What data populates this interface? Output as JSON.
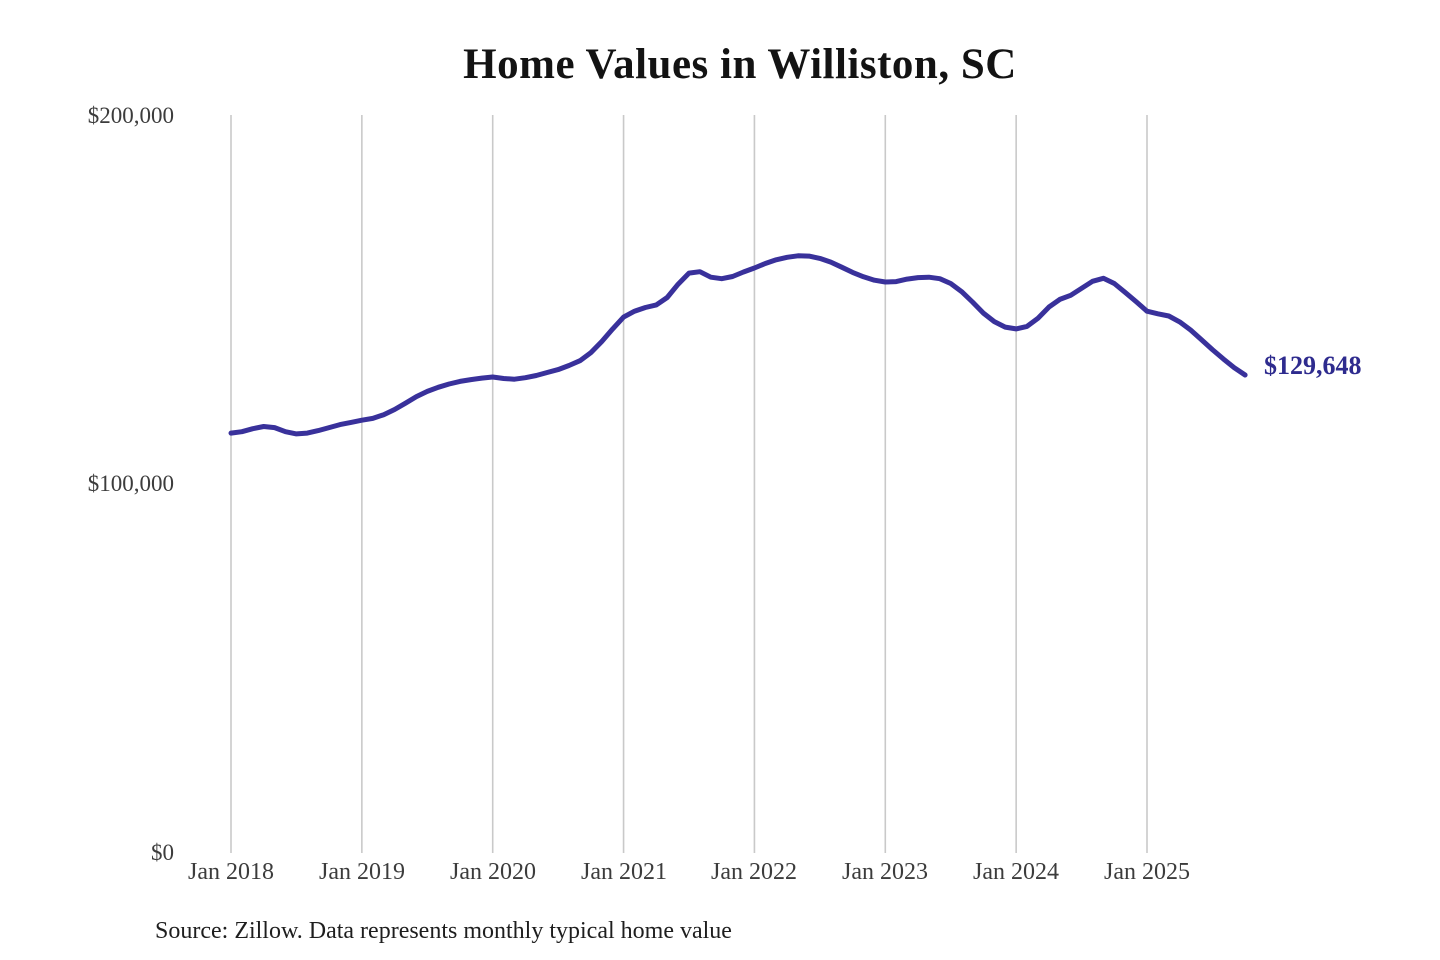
{
  "page": {
    "background": "#ffffff",
    "source_note": "Source: Zillow. Data represents monthly typical home value"
  },
  "chart_data": {
    "type": "line",
    "title": "Home Values in Williston, SC",
    "series_name": "Monthly typical home value",
    "unit": "USD",
    "x_frequency": "monthly",
    "x_start": "2018-01",
    "x_end": "2025-10",
    "xtick_labels": [
      "Jan 2018",
      "Jan 2019",
      "Jan 2020",
      "Jan 2021",
      "Jan 2022",
      "Jan 2023",
      "Jan 2024",
      "Jan 2025"
    ],
    "ytick_labels": [
      "$200,000",
      "$100,000",
      "$0"
    ],
    "ylim": [
      0,
      200000
    ],
    "grid": "vertical-only",
    "grid_color": "#c9c9c9",
    "line_color": "#39319b",
    "end_label": "$129,648",
    "end_value": 129648,
    "values": [
      113900,
      114300,
      115100,
      115700,
      115400,
      114300,
      113700,
      113900,
      114600,
      115400,
      116200,
      116800,
      117400,
      117900,
      118900,
      120300,
      122000,
      123800,
      125200,
      126300,
      127200,
      127900,
      128400,
      128800,
      129100,
      128700,
      128500,
      128900,
      129500,
      130300,
      131100,
      132200,
      133500,
      135700,
      138700,
      142100,
      145300,
      146900,
      147900,
      148600,
      150600,
      154200,
      157200,
      157600,
      156100,
      155700,
      156300,
      157500,
      158600,
      159800,
      160800,
      161500,
      161900,
      161800,
      161200,
      160200,
      158800,
      157400,
      156200,
      155300,
      154800,
      154900,
      155600,
      156000,
      156100,
      155700,
      154400,
      152200,
      149400,
      146400,
      144100,
      142600,
      142100,
      142800,
      145000,
      148000,
      150100,
      151200,
      153100,
      155000,
      155800,
      154400,
      152000,
      149500,
      146900,
      146200,
      145600,
      144000,
      141800,
      139200,
      136500,
      134000,
      131600,
      129648
    ]
  }
}
